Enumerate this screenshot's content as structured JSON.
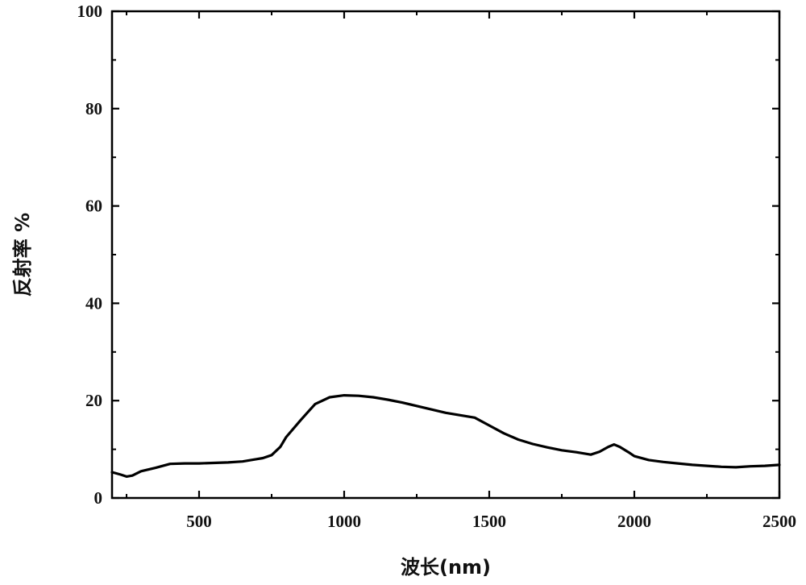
{
  "chart_data": {
    "type": "line",
    "title": "",
    "xlabel": "波长(nm)",
    "ylabel": "反射率 %",
    "xlim": [
      200,
      2500
    ],
    "ylim": [
      0,
      100
    ],
    "xticks": [
      500,
      1000,
      1500,
      2000,
      2500
    ],
    "yticks": [
      0,
      20,
      40,
      60,
      80,
      100
    ],
    "grid": false,
    "legend": "none",
    "line_color": "#000000",
    "series": [
      {
        "x": [
          200,
          230,
          250,
          270,
          300,
          350,
          400,
          450,
          500,
          550,
          600,
          650,
          700,
          720,
          750,
          780,
          800,
          850,
          900,
          950,
          1000,
          1050,
          1100,
          1150,
          1200,
          1250,
          1300,
          1350,
          1400,
          1450,
          1500,
          1550,
          1600,
          1650,
          1700,
          1750,
          1800,
          1850,
          1880,
          1910,
          1930,
          1950,
          1980,
          2000,
          2050,
          2100,
          2150,
          2200,
          2250,
          2300,
          2350,
          2400,
          2450,
          2500
        ],
        "y": [
          5.3,
          4.8,
          4.4,
          4.6,
          5.5,
          6.2,
          7.0,
          7.1,
          7.1,
          7.2,
          7.3,
          7.5,
          8.0,
          8.2,
          8.8,
          10.5,
          12.5,
          16.0,
          19.3,
          20.7,
          21.1,
          21.0,
          20.7,
          20.2,
          19.6,
          18.9,
          18.2,
          17.5,
          17.0,
          16.5,
          14.9,
          13.3,
          12.0,
          11.1,
          10.4,
          9.8,
          9.4,
          8.9,
          9.5,
          10.5,
          11.0,
          10.5,
          9.4,
          8.6,
          7.8,
          7.4,
          7.1,
          6.8,
          6.6,
          6.4,
          6.3,
          6.5,
          6.6,
          6.8
        ]
      }
    ]
  }
}
